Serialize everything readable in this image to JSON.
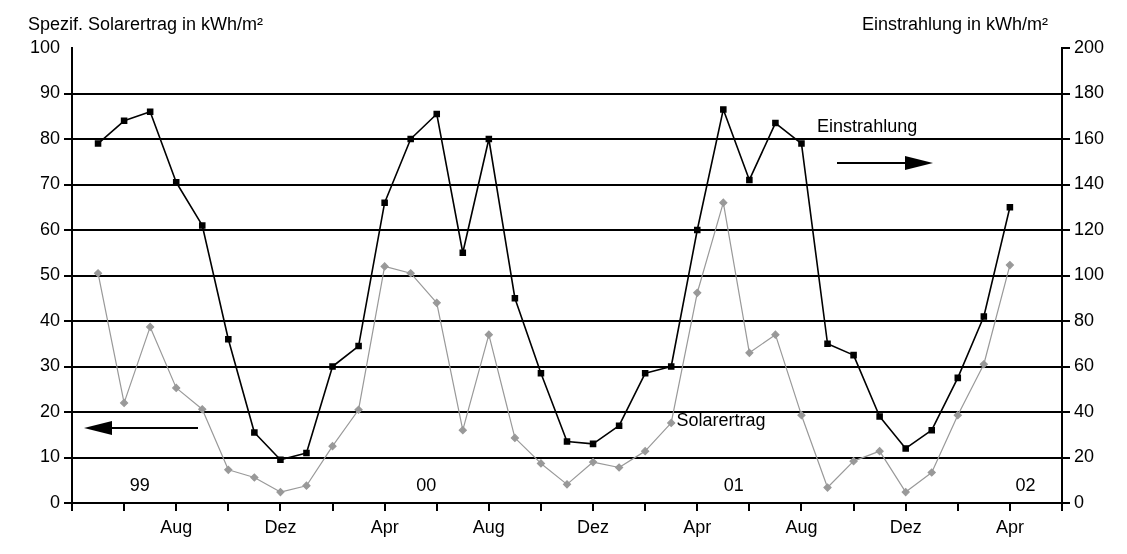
{
  "chart_data": {
    "type": "line",
    "xlabel": null,
    "ylabel": "Spezif. Solarertrag in kWh/m²",
    "y2label": "Einstrahlung in kWh/m²",
    "categories": [
      null,
      null,
      null,
      "Aug",
      null,
      null,
      null,
      "Dez",
      null,
      null,
      null,
      "Apr",
      null,
      null,
      null,
      "Aug",
      null,
      null,
      null,
      "Dez",
      null,
      null,
      null,
      "Apr",
      null,
      null,
      null,
      "Aug",
      null,
      null,
      null,
      "Dez",
      null,
      null,
      null,
      "Apr"
    ],
    "series": [
      {
        "name": "Einstrahlung",
        "color": "#000000",
        "axis": "y2",
        "marker": "square",
        "values": [
          158,
          168,
          172,
          141,
          122,
          72,
          31,
          19,
          22,
          60,
          69,
          132,
          160,
          171,
          110,
          160,
          90,
          57,
          27,
          26,
          34,
          57,
          60,
          120,
          173,
          142,
          167,
          158,
          70,
          65,
          38,
          24,
          32,
          55,
          82,
          130
        ]
      },
      {
        "name": "Solarertrag",
        "color": "#999999",
        "axis": "y",
        "marker": "diamond",
        "values": [
          50.5,
          22,
          38.7,
          25.3,
          20.6,
          7.3,
          5.6,
          2.4,
          3.8,
          12.5,
          20.5,
          52,
          50.5,
          44,
          16,
          37,
          14.3,
          8.7,
          4.1,
          9,
          7.8,
          11.4,
          17.6,
          46.2,
          66,
          33,
          37,
          19.3,
          3.4,
          9.2,
          11.4,
          2.4,
          6.7,
          19.3,
          30.5,
          52.3
        ]
      }
    ],
    "ylim": [
      0,
      100
    ],
    "yticks": [
      0,
      10,
      20,
      30,
      40,
      50,
      60,
      70,
      80,
      90,
      100
    ],
    "y2lim": [
      0,
      200
    ],
    "y2ticks": [
      0,
      20,
      40,
      60,
      80,
      100,
      120,
      140,
      160,
      180,
      200
    ],
    "annotations": [
      "99",
      "00",
      "01",
      "02"
    ],
    "grid": "y",
    "legend": false,
    "line_style": "solid"
  }
}
